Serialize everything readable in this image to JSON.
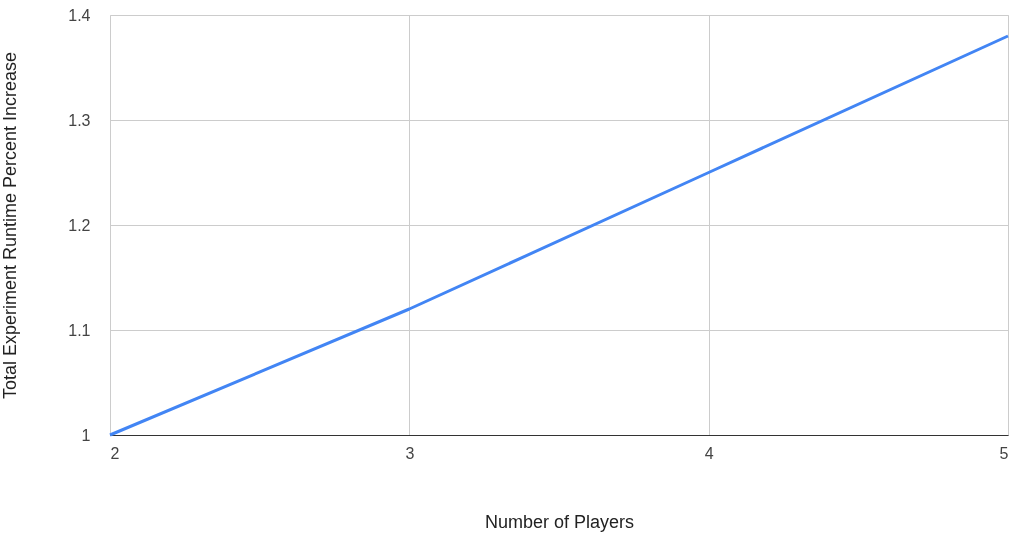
{
  "chart_data": {
    "type": "line",
    "xlabel": "Number of Players",
    "ylabel": "Total Experiment Runtime Percent Increase",
    "x": [
      2,
      3,
      4,
      5
    ],
    "series": [
      {
        "color": "#4285f4",
        "values": [
          1.0,
          1.12,
          1.25,
          1.38
        ]
      }
    ],
    "xlim": [
      2,
      5
    ],
    "xticks": [
      2,
      3,
      4,
      5
    ],
    "ylim": [
      1,
      1.4
    ],
    "yticks": [
      1,
      1.1,
      1.2,
      1.3,
      1.4
    ],
    "grid": true,
    "marker": "none",
    "line_style": "solid"
  }
}
